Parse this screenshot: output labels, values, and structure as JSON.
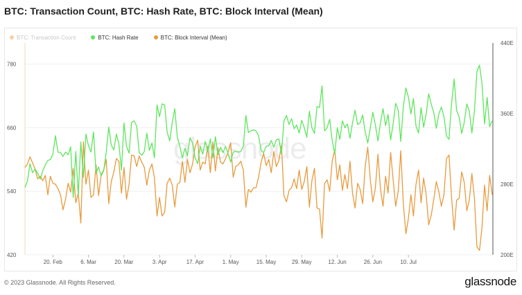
{
  "title": "BTC: Transaction Count, BTC: Hash Rate, BTC: Block Interval (Mean)",
  "footer": {
    "copyright": "© 2023 Glassnode. All Rights Reserved.",
    "brand": "glassnode"
  },
  "watermark": "glassnode",
  "colors": {
    "hash_rate": "#5ce65c",
    "block_interval": "#e89a3c",
    "transaction_count": "#e89a3c",
    "grid": "#efefef",
    "axis_text": "#555555"
  },
  "chart_data": {
    "type": "line",
    "legend": [
      {
        "name": "BTC: Transaction Count",
        "color": "#e89a3c",
        "muted": true
      },
      {
        "name": "BTC: Hash Rate",
        "color": "#5ce65c",
        "muted": false
      },
      {
        "name": "BTC: Block Interval (Mean)",
        "color": "#e89a3c",
        "muted": false
      }
    ],
    "x_ticks": [
      "20. Feb",
      "6. Mar",
      "20. Mar",
      "3. Apr",
      "17. Apr",
      "1. May",
      "15. May",
      "29. May",
      "12. Jun",
      "26. Jun",
      "10. Jul"
    ],
    "left_axis": {
      "ticks": [
        420,
        540,
        660,
        780
      ],
      "range": [
        420,
        820
      ]
    },
    "right_axis": {
      "ticks": [
        "200E",
        "280E",
        "360E",
        "440E"
      ],
      "range": [
        200,
        440
      ]
    },
    "points_per_day": 1,
    "hash_rate": [
      547,
      560,
      592,
      575,
      582,
      574,
      563,
      578,
      590,
      598,
      600,
      610,
      645,
      614,
      613,
      606,
      614,
      609,
      624,
      528,
      615,
      533,
      633,
      566,
      648,
      626,
      614,
      652,
      574,
      586,
      569,
      579,
      613,
      661,
      627,
      618,
      648,
      629,
      580,
      669,
      625,
      612,
      670,
      673,
      663,
      613,
      608,
      615,
      650,
      617,
      631,
      603,
      703,
      681,
      705,
      703,
      652,
      635,
      670,
      696,
      642,
      625,
      603,
      621,
      607,
      641,
      631,
      604,
      592,
      625,
      610,
      634,
      614,
      639,
      603,
      643,
      609,
      623,
      613,
      625,
      611,
      595,
      614,
      615,
      614,
      615,
      625,
      683,
      651,
      654,
      656,
      654,
      645,
      617,
      613,
      625,
      626,
      636,
      623,
      637,
      639,
      610,
      673,
      683,
      666,
      677,
      658,
      665,
      650,
      674,
      660,
      642,
      691,
      660,
      649,
      700,
      698,
      739,
      654,
      660,
      676,
      636,
      611,
      660,
      638,
      673,
      660,
      667,
      640,
      669,
      693,
      666,
      669,
      684,
      652,
      631,
      660,
      689,
      665,
      635,
      669,
      696,
      664,
      685,
      637,
      667,
      706,
      693,
      634,
      699,
      735,
      718,
      686,
      715,
      663,
      650,
      698,
      661,
      686,
      724,
      704,
      688,
      659,
      686,
      699,
      681,
      644,
      638,
      706,
      752,
      692,
      680,
      649,
      670,
      705,
      691,
      650,
      692,
      766,
      778,
      743,
      667,
      717,
      662,
      673
    ],
    "block_interval": [
      299,
      303,
      311,
      304,
      297,
      286,
      289,
      284,
      290,
      268,
      289,
      281,
      280,
      275,
      268,
      251,
      263,
      281,
      271,
      298,
      259,
      270,
      236,
      328,
      280,
      296,
      265,
      268,
      302,
      267,
      291,
      296,
      308,
      258,
      283,
      294,
      309,
      306,
      270,
      299,
      263,
      280,
      313,
      312,
      300,
      312,
      305,
      299,
      279,
      296,
      303,
      287,
      244,
      265,
      244,
      248,
      281,
      287,
      279,
      254,
      280,
      282,
      306,
      282,
      308,
      293,
      303,
      322,
      330,
      296,
      305,
      303,
      323,
      293,
      328,
      295,
      321,
      305,
      303,
      309,
      316,
      327,
      288,
      300,
      302,
      306,
      296,
      254,
      274,
      271,
      276,
      276,
      288,
      305,
      315,
      301,
      308,
      293,
      317,
      300,
      307,
      324,
      267,
      260,
      273,
      276,
      286,
      275,
      296,
      274,
      283,
      300,
      254,
      284,
      298,
      253,
      252,
      219,
      281,
      285,
      272,
      306,
      319,
      285,
      302,
      273,
      291,
      275,
      306,
      270,
      253,
      281,
      274,
      258,
      300,
      322,
      285,
      260,
      276,
      314,
      275,
      255,
      289,
      270,
      316,
      285,
      255,
      272,
      318,
      258,
      224,
      241,
      268,
      244,
      280,
      296,
      259,
      287,
      268,
      234,
      245,
      263,
      283,
      271,
      255,
      268,
      309,
      313,
      265,
      228,
      262,
      264,
      294,
      282,
      250,
      262,
      292,
      264,
      209,
      205,
      231,
      279,
      250,
      290,
      268
    ]
  }
}
